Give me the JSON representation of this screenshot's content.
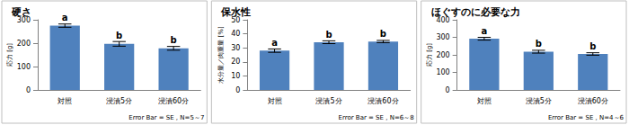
{
  "chart_data": [
    {
      "type": "bar",
      "title": "硬さ",
      "ylabel": "応力 [g]",
      "categories": [
        "対照",
        "浸漬5分",
        "浸漬60分"
      ],
      "values": [
        275,
        197,
        178
      ],
      "errors": [
        7,
        10,
        8
      ],
      "letters": [
        "a",
        "b",
        "b"
      ],
      "note": "Error Bar = SE , N=5～7",
      "color": "#4f81bd",
      "ylim": [
        0,
        300
      ],
      "yticks": [
        0,
        100,
        200,
        300
      ],
      "grid": false
    },
    {
      "type": "bar",
      "title": "保水性",
      "ylabel": "水分量／肉重量 [%]",
      "categories": [
        "対照",
        "浸漬5分",
        "浸漬60分"
      ],
      "values": [
        28,
        34,
        34.5
      ],
      "errors": [
        1.2,
        1,
        0.8
      ],
      "letters": [
        "a",
        "b",
        "b"
      ],
      "note": "Error Bar = SE , N=6～8",
      "color": "#4f81bd",
      "ylim": [
        0,
        50
      ],
      "yticks": [
        0,
        10,
        20,
        30,
        40,
        50
      ],
      "grid": false
    },
    {
      "type": "bar",
      "title": "ほぐすのに必要な力",
      "ylabel": "応力 [g]",
      "categories": [
        "対照",
        "浸漬5分",
        "浸漬60分"
      ],
      "values": [
        292,
        218,
        205
      ],
      "errors": [
        8,
        8,
        7
      ],
      "letters": [
        "a",
        "b",
        "b"
      ],
      "note": "Error Bar = SE , N=4～6",
      "color": "#4f81bd",
      "ylim": [
        0,
        400
      ],
      "yticks": [
        0,
        100,
        200,
        300,
        400
      ],
      "grid": false
    }
  ]
}
